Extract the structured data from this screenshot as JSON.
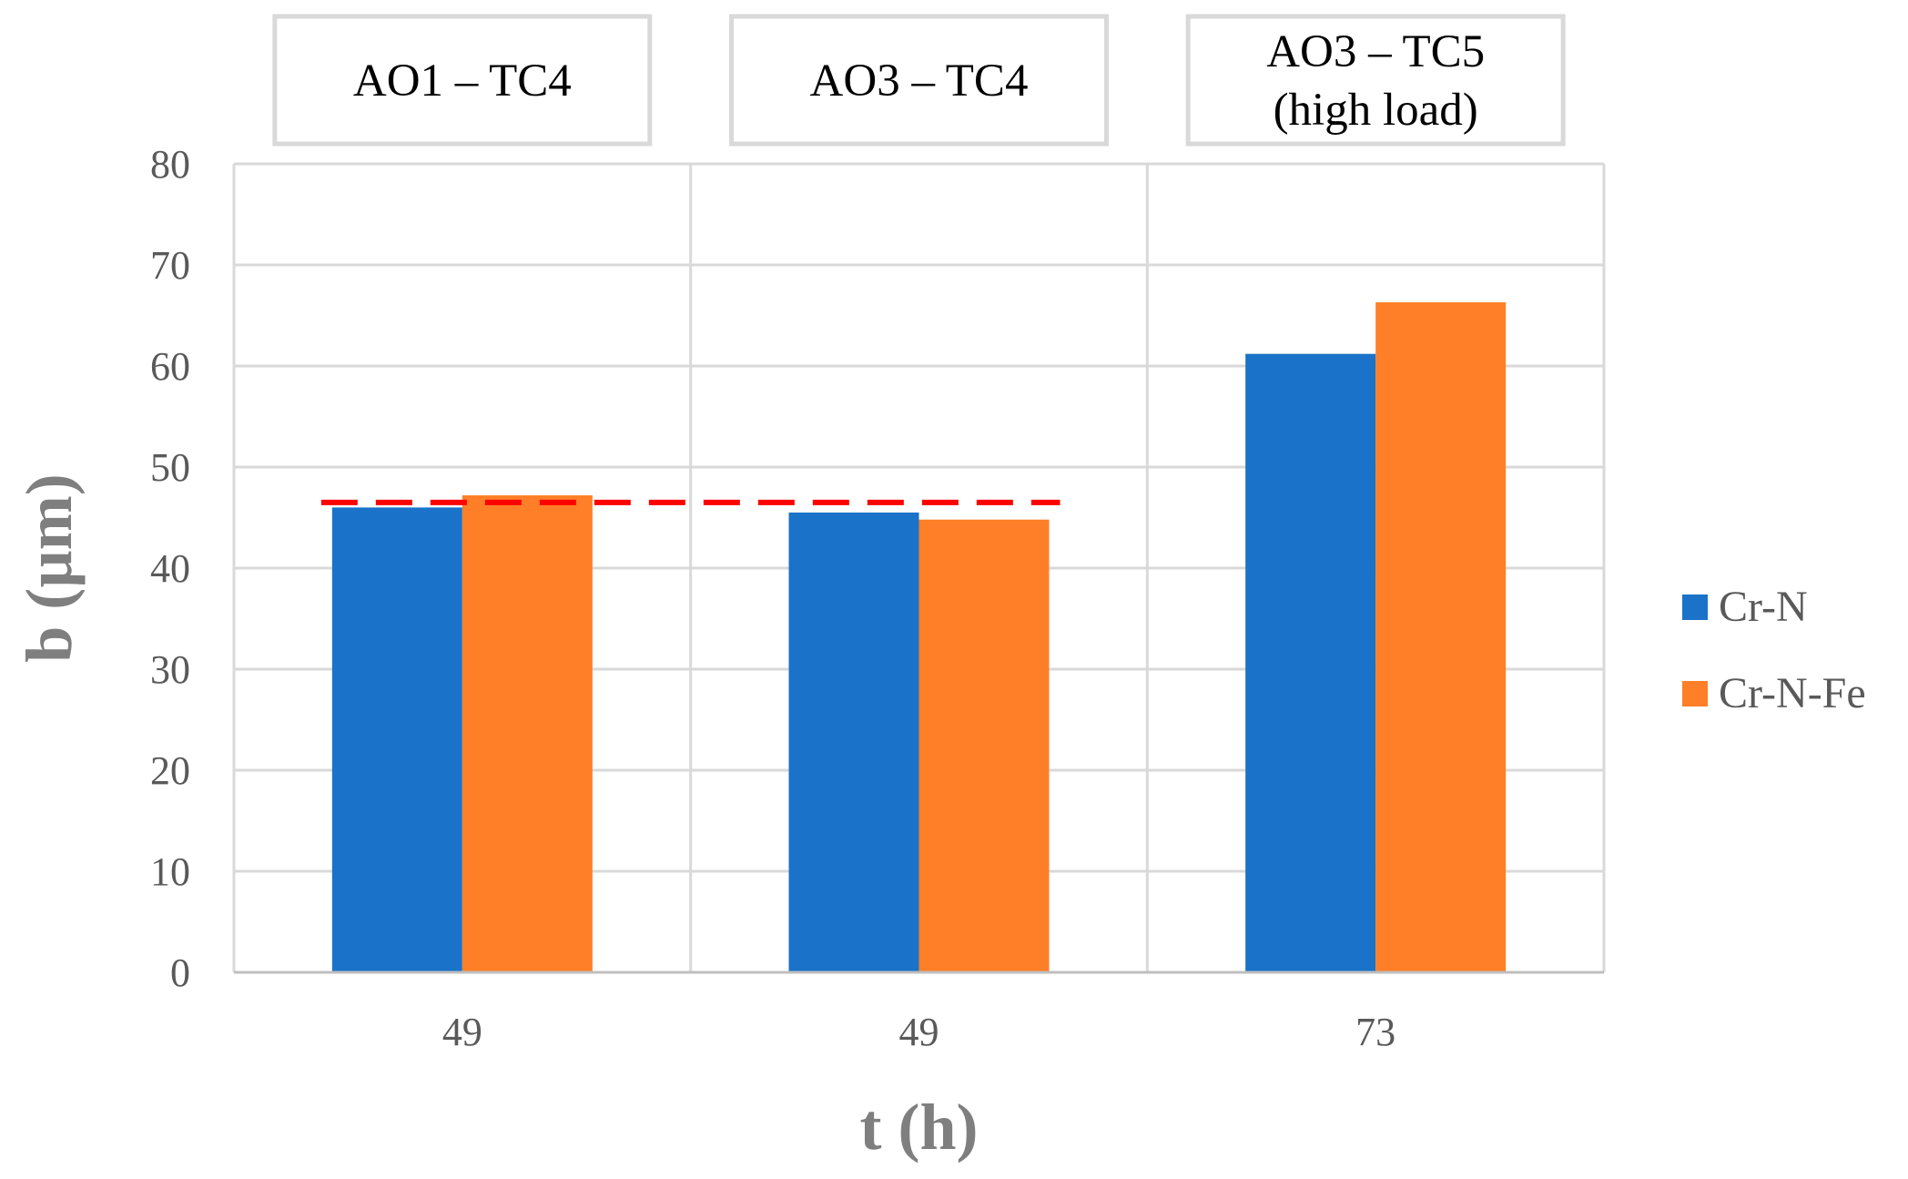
{
  "chart_data": {
    "type": "bar",
    "categories": [
      "49",
      "49",
      "73"
    ],
    "group_titles": [
      [
        "AO1 – TC4"
      ],
      [
        "AO3 – TC4"
      ],
      [
        "AO3 – TC5",
        "(high load)"
      ]
    ],
    "series": [
      {
        "name": "Cr-N",
        "color": "#1a73c8",
        "values": [
          46.0,
          45.5,
          61.2
        ]
      },
      {
        "name": "Cr-N-Fe",
        "color": "#fe7f27",
        "values": [
          47.2,
          44.8,
          66.3
        ]
      }
    ],
    "reference_line": {
      "value": 46.5,
      "color": "#ff0000",
      "spans_groups": [
        0,
        1
      ]
    },
    "xlabel": "t (h)",
    "ylabel": "b (µm)",
    "ylim": [
      0,
      80
    ],
    "yticks": [
      0,
      10,
      20,
      30,
      40,
      50,
      60,
      70,
      80
    ],
    "grid": true,
    "legend_position": "right"
  }
}
